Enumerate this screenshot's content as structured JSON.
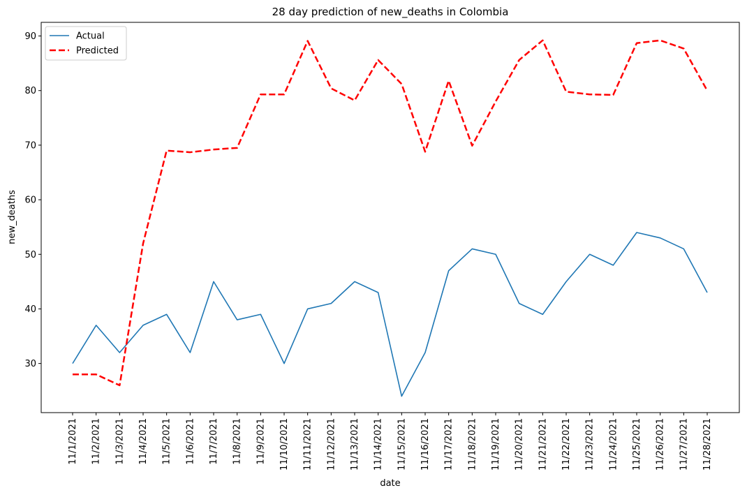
{
  "chart_data": {
    "type": "line",
    "title": "28 day prediction of new_deaths in Colombia",
    "xlabel": "date",
    "ylabel": "new_deaths",
    "categories": [
      "11/1/2021",
      "11/2/2021",
      "11/3/2021",
      "11/4/2021",
      "11/5/2021",
      "11/6/2021",
      "11/7/2021",
      "11/8/2021",
      "11/9/2021",
      "11/10/2021",
      "11/11/2021",
      "11/12/2021",
      "11/13/2021",
      "11/14/2021",
      "11/15/2021",
      "11/16/2021",
      "11/17/2021",
      "11/18/2021",
      "11/19/2021",
      "11/20/2021",
      "11/21/2021",
      "11/22/2021",
      "11/23/2021",
      "11/24/2021",
      "11/25/2021",
      "11/26/2021",
      "11/27/2021",
      "11/28/2021"
    ],
    "yticks": [
      30,
      40,
      50,
      60,
      70,
      80,
      90
    ],
    "ylim": [
      21,
      92.5
    ],
    "grid": false,
    "legend_position": "upper-left",
    "series": [
      {
        "name": "Actual",
        "color": "#1f77b4",
        "style": "solid",
        "values": [
          30,
          37,
          32,
          37,
          39,
          32,
          45,
          38,
          39,
          30,
          40,
          41,
          45,
          43,
          24,
          32,
          47,
          51,
          50,
          41,
          39,
          45,
          50,
          48,
          54,
          53,
          51,
          43
        ]
      },
      {
        "name": "Predicted",
        "color": "#ff0000",
        "style": "dashed",
        "values": [
          28,
          28,
          26,
          52,
          69,
          68.7,
          69.2,
          69.5,
          79.3,
          79.3,
          89.1,
          80.4,
          78.2,
          85.6,
          81.2,
          68.8,
          81.8,
          69.9,
          78,
          85.6,
          89.2,
          79.8,
          79.3,
          79.2,
          88.7,
          89.2,
          87.7,
          80
        ]
      }
    ]
  }
}
